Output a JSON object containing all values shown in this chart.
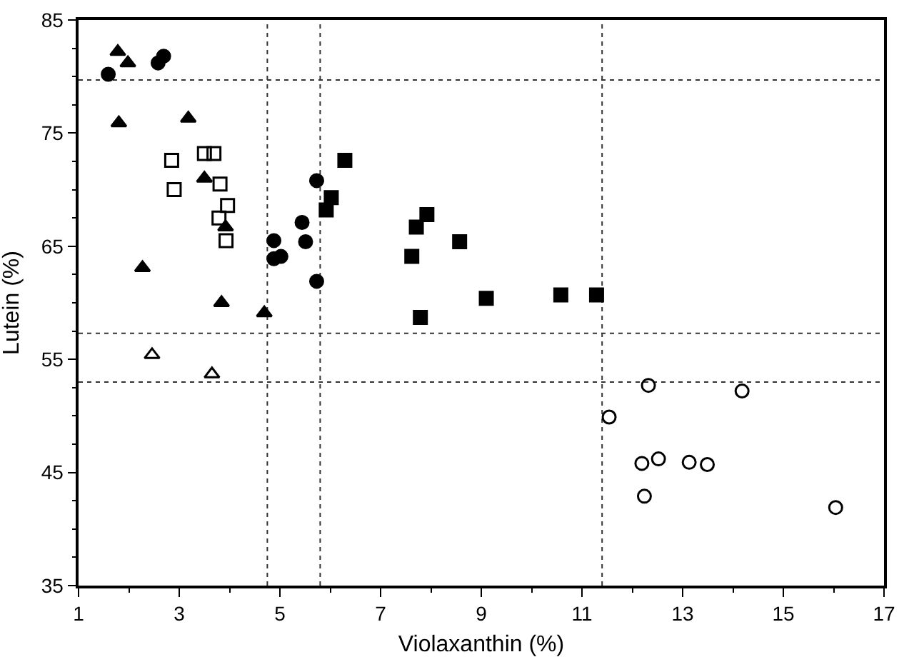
{
  "chart_data": {
    "type": "scatter",
    "xlabel": "Violaxanthin (%)",
    "ylabel": "Lutein (%)",
    "xlim": [
      1,
      17
    ],
    "xticks": [
      1,
      3,
      5,
      7,
      9,
      11,
      13,
      15,
      17
    ],
    "ylim": [
      35,
      85
    ],
    "yticks": [
      35,
      45,
      55,
      65,
      75,
      85
    ],
    "grid": false,
    "series": [
      {
        "color": "#000000",
        "marker": "triangle",
        "x": [
          1.78,
          1.98,
          1.8,
          3.18,
          3.5,
          3.92,
          2.27,
          3.84,
          4.69
        ],
        "values": [
          82.2,
          81.2,
          75.9,
          76.3,
          71.0,
          66.7,
          63.1,
          60.0,
          59.1
        ]
      },
      {
        "color": "#000000",
        "marker": "triangle-open",
        "x": [
          2.46,
          3.65
        ],
        "values": [
          55.4,
          53.7
        ]
      },
      {
        "color": "#000000",
        "marker": "circle",
        "x": [
          1.59,
          2.58,
          2.69,
          4.88,
          4.88,
          5.02,
          5.44,
          5.51,
          5.73,
          5.73
        ],
        "values": [
          80.2,
          81.2,
          81.8,
          65.5,
          63.9,
          64.1,
          67.1,
          65.4,
          70.8,
          61.9
        ]
      },
      {
        "color": "#000000",
        "marker": "square",
        "x": [
          6.29,
          6.02,
          5.92,
          7.92,
          7.71,
          7.62,
          8.57,
          9.1,
          10.58,
          11.29,
          7.79
        ],
        "values": [
          72.6,
          69.3,
          68.2,
          67.8,
          66.7,
          64.1,
          65.4,
          60.4,
          60.7,
          60.7,
          58.7
        ]
      },
      {
        "color": "#000000",
        "marker": "square-open",
        "x": [
          2.85,
          2.9,
          3.5,
          3.69,
          3.81,
          3.96,
          3.79,
          3.93
        ],
        "values": [
          72.6,
          70.0,
          73.2,
          73.2,
          70.5,
          68.6,
          67.5,
          65.5
        ]
      },
      {
        "color": "#000000",
        "marker": "circle-open",
        "x": [
          12.32,
          14.18,
          11.54,
          12.19,
          12.52,
          13.13,
          13.49,
          12.24,
          16.04
        ],
        "values": [
          52.7,
          52.2,
          49.9,
          45.8,
          46.2,
          45.9,
          45.7,
          42.9,
          41.9
        ]
      }
    ],
    "ref_lines": [
      {
        "axis": "x",
        "value": 4.75,
        "line_style": "dotted"
      },
      {
        "axis": "x",
        "value": 5.8,
        "line_style": "dotted"
      },
      {
        "axis": "x",
        "value": 11.4,
        "line_style": "dotted"
      },
      {
        "axis": "y",
        "value": 79.7,
        "line_style": "dotted"
      },
      {
        "axis": "y",
        "value": 57.3,
        "line_style": "dotted"
      },
      {
        "axis": "y",
        "value": 53.0,
        "line_style": "dotted"
      }
    ]
  }
}
